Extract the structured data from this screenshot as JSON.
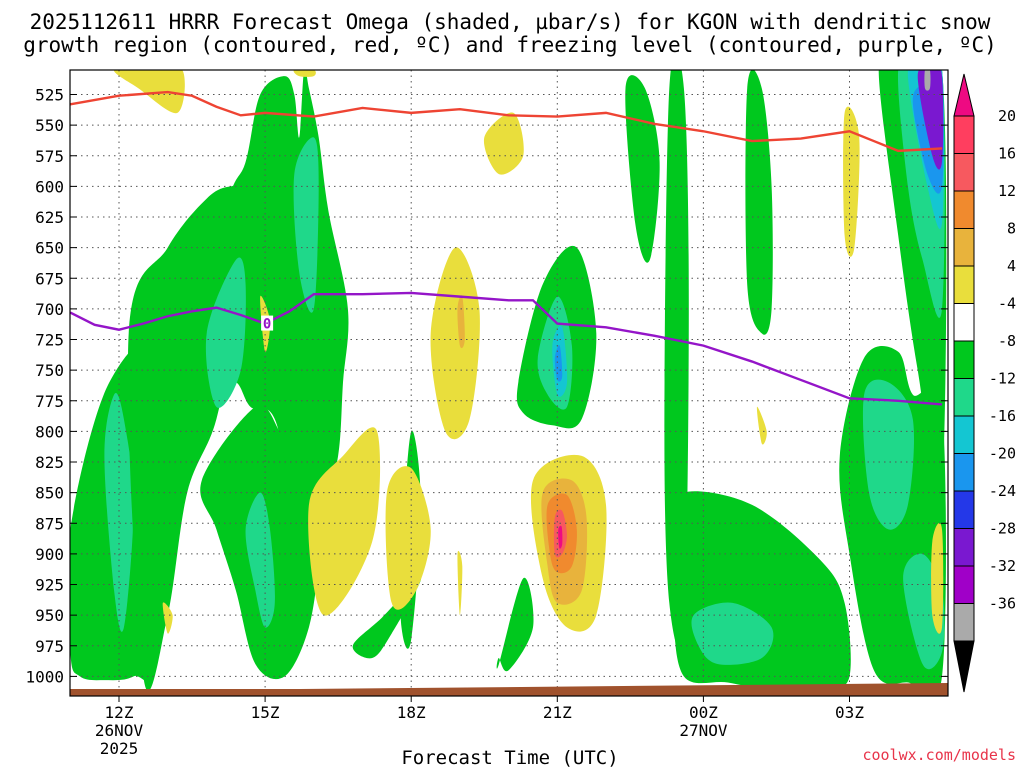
{
  "title": {
    "line1": "2025112611 HRRR Forecast Omega (shaded, µbar/s) for KGON with dendritic snow",
    "line2": "growth region (contoured, red, ºC) and freezing level (contoured, purple, ºC)"
  },
  "credit": "coolwx.com/models",
  "chart_data": {
    "type": "heatmap",
    "xlabel": "Forecast Time (UTC)",
    "ylabel": "",
    "x_ticks": [
      {
        "hour": 1,
        "label": "12Z",
        "sub1": "26NOV",
        "sub2": "2025"
      },
      {
        "hour": 4,
        "label": "15Z",
        "sub1": "",
        "sub2": ""
      },
      {
        "hour": 7,
        "label": "18Z",
        "sub1": "",
        "sub2": ""
      },
      {
        "hour": 10,
        "label": "21Z",
        "sub1": "",
        "sub2": ""
      },
      {
        "hour": 13,
        "label": "00Z",
        "sub1": "27NOV",
        "sub2": ""
      },
      {
        "hour": 16,
        "label": "03Z",
        "sub1": "",
        "sub2": ""
      }
    ],
    "x_range_hours": [
      0,
      17.9
    ],
    "y_ticks": [
      525,
      550,
      575,
      600,
      625,
      650,
      675,
      700,
      725,
      750,
      775,
      800,
      825,
      850,
      875,
      900,
      925,
      950,
      975,
      1000
    ],
    "y_range_mb": [
      505,
      1016
    ],
    "colorbar": {
      "labels": [
        "20",
        "16",
        "12",
        "8",
        "4",
        "-4",
        "-8",
        "-12",
        "-16",
        "-20",
        "-24",
        "-28",
        "-32",
        "-36"
      ],
      "colors": [
        "#ff3e5f",
        "#f7595f",
        "#f08a2e",
        "#e8b33c",
        "#e9de3c",
        "#ffffff",
        "#00c81e",
        "#1fd88a",
        "#14c6d2",
        "#1a96ee",
        "#2438e8",
        "#7a18d0",
        "#a000c8",
        "#aaaaaa"
      ],
      "top_arrow": "#ee0a82",
      "bottom_arrow": "#000000"
    },
    "freezing_level": {
      "label": "0",
      "hours": [
        0,
        0.5,
        1,
        1.5,
        2,
        2.5,
        3,
        3.5,
        4,
        4.5,
        5,
        6,
        7,
        8,
        9,
        9.5,
        10,
        11,
        12,
        13,
        14,
        15,
        16,
        17,
        17.9
      ],
      "mb": [
        703,
        713,
        717,
        712,
        706,
        702,
        699,
        705,
        712,
        702,
        688,
        688,
        687,
        690,
        693,
        693,
        712,
        715,
        722,
        730,
        743,
        758,
        773,
        775,
        778
      ]
    },
    "dgz_top": {
      "hours": [
        0,
        1,
        2,
        2.5,
        3,
        3.5,
        4,
        5,
        6,
        7,
        8,
        9,
        10,
        11,
        12,
        13,
        14,
        15,
        16,
        16.5,
        17,
        17.9
      ],
      "mb": [
        533,
        526,
        523,
        526,
        535,
        542,
        540,
        543,
        536,
        540,
        537,
        542,
        543,
        540,
        549,
        555,
        563,
        561,
        555,
        563,
        571,
        569
      ]
    },
    "omega_regions": [
      {
        "color": "#00c81e",
        "hours": [
          0.0,
          0.8,
          1.8,
          1.8,
          1.3,
          0.7,
          0.2,
          0.0
        ],
        "mb": [
          880,
          760,
          745,
          980,
          1000,
          1003,
          1000,
          980
        ]
      },
      {
        "color": "#1fd88a",
        "hours": [
          0.7,
          0.9,
          1.1,
          1.3,
          1.1,
          0.9
        ],
        "mb": [
          820,
          770,
          790,
          860,
          960,
          930
        ]
      },
      {
        "color": "#00c81e",
        "hours": [
          1.2,
          2.0,
          2.8,
          3.3,
          3.7,
          3.4,
          3.0,
          2.4,
          2.0,
          1.5
        ],
        "mb": [
          720,
          650,
          610,
          600,
          605,
          700,
          790,
          850,
          950,
          1000
        ]
      },
      {
        "color": "#00c81e",
        "hours": [
          2.7,
          3.8,
          4.3,
          4.5,
          4.8,
          5.0,
          5.1,
          4.9,
          4.4,
          3.8,
          3.4,
          3.0
        ],
        "mb": [
          840,
          780,
          800,
          815,
          830,
          860,
          900,
          960,
          1000,
          990,
          930,
          880
        ]
      },
      {
        "color": "#1fd88a",
        "hours": [
          3.6,
          3.9,
          4.1,
          4.2,
          4.0,
          3.8
        ],
        "mb": [
          880,
          850,
          880,
          940,
          960,
          930
        ]
      },
      {
        "color": "#00c81e",
        "hours": [
          2.5,
          3.2,
          3.6,
          3.9,
          4.4,
          4.6,
          4.7,
          4.8,
          4.9,
          5.1,
          5.3,
          5.7,
          5.6,
          5.5,
          5.2,
          4.7,
          4.2,
          3.7,
          3.4,
          3.0,
          2.6
        ],
        "mb": [
          780,
          620,
          580,
          525,
          510,
          525,
          560,
          505,
          520,
          560,
          620,
          700,
          760,
          820,
          860,
          870,
          790,
          780,
          760,
          770,
          790
        ]
      },
      {
        "color": "#1fd88a",
        "hours": [
          2.8,
          3.4,
          3.6,
          3.5,
          3.0
        ],
        "mb": [
          720,
          660,
          680,
          750,
          780
        ]
      },
      {
        "color": "#1fd88a",
        "hours": [
          4.6,
          5.0,
          5.1,
          5.0,
          4.7
        ],
        "mb": [
          590,
          560,
          600,
          700,
          670
        ]
      },
      {
        "color": "#00c81e",
        "hours": [
          5.8,
          6.4,
          7.2,
          6.6,
          6.2
        ],
        "mb": [
          975,
          952,
          920,
          965,
          985
        ]
      },
      {
        "color": "#00c81e",
        "hours": [
          6.8,
          7.0,
          7.2,
          7.0,
          6.8
        ],
        "mb": [
          900,
          800,
          860,
          970,
          960
        ]
      },
      {
        "color": "#00c81e",
        "hours": [
          8.8,
          9.3,
          9.5,
          9.0,
          8.8
        ],
        "mb": [
          990,
          920,
          960,
          995,
          985
        ]
      },
      {
        "color": "#00c81e",
        "hours": [
          9.2,
          9.7,
          10.4,
          10.8,
          10.5,
          9.9,
          9.3
        ],
        "mb": [
          760,
          680,
          650,
          720,
          790,
          795,
          785
        ]
      },
      {
        "color": "#1fd88a",
        "hours": [
          9.6,
          10.0,
          10.3,
          10.2,
          9.8
        ],
        "mb": [
          740,
          690,
          730,
          780,
          770
        ]
      },
      {
        "color": "#14c6d2",
        "hours": [
          9.9,
          10.1,
          10.2,
          10.0
        ],
        "mb": [
          730,
          715,
          760,
          770
        ]
      },
      {
        "color": "#1a96ee",
        "hours": [
          9.95,
          10.05,
          10.1,
          10.0
        ],
        "mb": [
          740,
          730,
          755,
          758
        ]
      },
      {
        "color": "#00c81e",
        "hours": [
          11.4,
          11.8,
          12.1,
          11.9,
          11.6
        ],
        "mb": [
          520,
          520,
          580,
          660,
          630
        ]
      },
      {
        "color": "#00c81e",
        "hours": [
          12.3,
          12.6,
          12.7,
          12.6,
          12.3,
          12.2
        ],
        "mb": [
          520,
          520,
          700,
          960,
          940,
          800
        ]
      },
      {
        "color": "#00c81e",
        "hours": [
          12.6,
          14.0,
          15.4,
          15.9,
          16.0,
          15.5,
          14.5,
          13.5,
          12.6,
          12.4,
          12.6
        ],
        "mb": [
          850,
          860,
          905,
          940,
          1000,
          1010,
          1012,
          1005,
          1000,
          945,
          880
        ]
      },
      {
        "color": "#1fd88a",
        "hours": [
          12.8,
          13.6,
          14.4,
          14.2,
          13.3,
          12.9
        ],
        "mb": [
          950,
          940,
          960,
          985,
          990,
          975
        ]
      },
      {
        "color": "#00c81e",
        "hours": [
          13.9,
          14.2,
          14.4,
          14.4,
          14.2,
          13.9
        ],
        "mb": [
          520,
          520,
          600,
          700,
          720,
          680
        ]
      },
      {
        "color": "#00c81e",
        "hours": [
          15.8,
          16.3,
          17.0,
          17.3,
          17.9,
          17.9,
          17.2,
          16.5,
          16.0
        ],
        "mb": [
          820,
          740,
          735,
          770,
          780,
          1000,
          1005,
          995,
          900
        ]
      },
      {
        "color": "#1fd88a",
        "hours": [
          16.3,
          16.8,
          17.3,
          17.2,
          16.8,
          16.4
        ],
        "mb": [
          770,
          760,
          790,
          860,
          880,
          850
        ]
      },
      {
        "color": "#1fd88a",
        "hours": [
          17.1,
          17.5,
          17.9,
          17.9,
          17.5
        ],
        "mb": [
          920,
          900,
          930,
          980,
          990
        ]
      },
      {
        "color": "#00c81e",
        "hours": [
          16.6,
          17.0,
          17.9,
          17.9,
          17.4,
          17.0
        ],
        "mb": [
          505,
          505,
          505,
          850,
          750,
          640
        ]
      },
      {
        "color": "#1fd88a",
        "hours": [
          17.0,
          17.4,
          17.9,
          17.9,
          17.5,
          17.2
        ],
        "mb": [
          505,
          505,
          505,
          700,
          660,
          600
        ]
      },
      {
        "color": "#14c6d2",
        "hours": [
          17.2,
          17.5,
          17.9,
          17.9,
          17.6
        ],
        "mb": [
          510,
          505,
          505,
          630,
          600
        ]
      },
      {
        "color": "#1a96ee",
        "hours": [
          17.3,
          17.6,
          17.9,
          17.9,
          17.6
        ],
        "mb": [
          530,
          515,
          510,
          600,
          590
        ]
      },
      {
        "color": "#7a18d0",
        "hours": [
          17.4,
          17.7,
          17.9,
          17.9,
          17.7
        ],
        "mb": [
          510,
          505,
          510,
          580,
          575
        ]
      },
      {
        "color": "#aaaaaa",
        "hours": [
          17.55,
          17.65,
          17.65,
          17.55
        ],
        "mb": [
          505,
          505,
          520,
          520
        ]
      },
      {
        "color": "#e9de3c",
        "hours": [
          0.9,
          1.6,
          2.3,
          2.2,
          1.4
        ],
        "mb": [
          505,
          505,
          505,
          540,
          520
        ]
      },
      {
        "color": "#e9de3c",
        "hours": [
          4.6,
          5.0,
          5.0,
          4.7
        ],
        "mb": [
          505,
          505,
          510,
          510
        ]
      },
      {
        "color": "#e9de3c",
        "hours": [
          8.5,
          9.1,
          9.3,
          8.8
        ],
        "mb": [
          560,
          540,
          575,
          590
        ]
      },
      {
        "color": "#e9de3c",
        "hours": [
          6.5,
          7.0,
          7.4,
          7.1,
          6.6
        ],
        "mb": [
          850,
          830,
          880,
          930,
          940
        ]
      },
      {
        "color": "#e9de3c",
        "hours": [
          4.9,
          5.6,
          6.3,
          6.2,
          5.2
        ],
        "mb": [
          860,
          820,
          800,
          890,
          950
        ]
      },
      {
        "color": "#e9de3c",
        "hours": [
          7.4,
          7.9,
          8.4,
          8.2,
          7.7
        ],
        "mb": [
          720,
          650,
          700,
          790,
          800
        ]
      },
      {
        "color": "#e8b33c",
        "hours": [
          7.95,
          8.05,
          8.1,
          8.0
        ],
        "mb": [
          700,
          690,
          725,
          730
        ]
      },
      {
        "color": "#e9de3c",
        "hours": [
          9.5,
          10.5,
          11.0,
          10.8,
          10.2,
          9.7
        ],
        "mb": [
          840,
          820,
          860,
          950,
          960,
          920
        ]
      },
      {
        "color": "#e8b33c",
        "hours": [
          9.7,
          10.3,
          10.6,
          10.5,
          10.0,
          9.8
        ],
        "mb": [
          850,
          840,
          870,
          930,
          940,
          910
        ]
      },
      {
        "color": "#f08a2e",
        "hours": [
          9.8,
          10.2,
          10.4,
          10.3,
          10.0,
          9.85
        ],
        "mb": [
          860,
          852,
          880,
          910,
          915,
          900
        ]
      },
      {
        "color": "#f7595f",
        "hours": [
          9.95,
          10.1,
          10.2,
          10.1,
          9.95
        ],
        "mb": [
          870,
          865,
          885,
          900,
          900
        ]
      },
      {
        "color": "#ee0a82",
        "hours": [
          10.02,
          10.09,
          10.1,
          10.04
        ],
        "mb": [
          880,
          878,
          892,
          895
        ]
      },
      {
        "color": "#e9de3c",
        "hours": [
          14.1,
          14.3,
          14.2
        ],
        "mb": [
          780,
          800,
          810
        ]
      },
      {
        "color": "#e9de3c",
        "hours": [
          15.9,
          16.2,
          16.1,
          15.9
        ],
        "mb": [
          540,
          560,
          650,
          640
        ]
      },
      {
        "color": "#e9de3c",
        "hours": [
          17.7,
          17.9,
          17.9,
          17.7
        ],
        "mb": [
          890,
          880,
          960,
          950
        ]
      },
      {
        "color": "#e9de3c",
        "hours": [
          7.95,
          8.05,
          8.0
        ],
        "mb": [
          900,
          910,
          950
        ]
      },
      {
        "color": "#e9de3c",
        "hours": [
          3.9,
          4.1,
          4.0
        ],
        "mb": [
          690,
          710,
          735
        ]
      },
      {
        "color": "#e9de3c",
        "hours": [
          1.9,
          2.1,
          2.0
        ],
        "mb": [
          940,
          950,
          965
        ]
      }
    ]
  }
}
